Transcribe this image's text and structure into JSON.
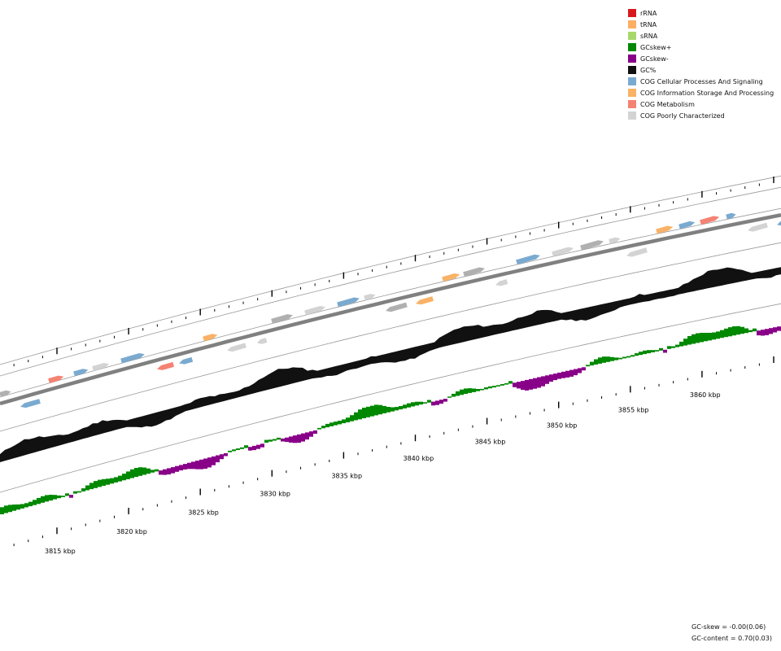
{
  "legend": {
    "items": [
      {
        "label": "rRNA",
        "color": "#d7191c"
      },
      {
        "label": "tRNA",
        "color": "#fdae61"
      },
      {
        "label": "sRNA",
        "color": "#a6d96a"
      },
      {
        "label": "GCskew+",
        "color": "#008800"
      },
      {
        "label": "GCskew-",
        "color": "#880088"
      },
      {
        "label": "GC%",
        "color": "#111111"
      },
      {
        "label": "COG Cellular Processes And Signaling",
        "color": "#7aaad0"
      },
      {
        "label": "COG Information Storage And Processing",
        "color": "#f9b266"
      },
      {
        "label": "COG Metabolism",
        "color": "#f58272"
      },
      {
        "label": "COG Poorly Characterized",
        "color": "#d3d3d3"
      }
    ]
  },
  "colors": {
    "backbone": "#808080",
    "gc_content": "#111111",
    "gc_skew_positive": "#008800",
    "gc_skew_negative": "#880088",
    "cog_cellular": "#7aaad0",
    "cog_information": "#f9b266",
    "cog_metabolism": "#f58272",
    "cog_poorly": "#d3d3d3",
    "other_gene": "#b0b0b0"
  },
  "axis": {
    "unit": "kbp",
    "major_ticks_kbp": [
      3815,
      3820,
      3825,
      3830,
      3835,
      3840,
      3845,
      3850,
      3855,
      3860
    ],
    "labels": [
      "3815 kbp",
      "3820 kbp",
      "3825 kbp",
      "3830 kbp",
      "3835 kbp",
      "3840 kbp",
      "3845 kbp",
      "3850 kbp",
      "3855 kbp",
      "3860 kbp"
    ]
  },
  "stats": {
    "gc_skew": "GC-skew = -0.00(0.06)",
    "gc_content": "GC-content = 0.70(0.03)"
  }
}
